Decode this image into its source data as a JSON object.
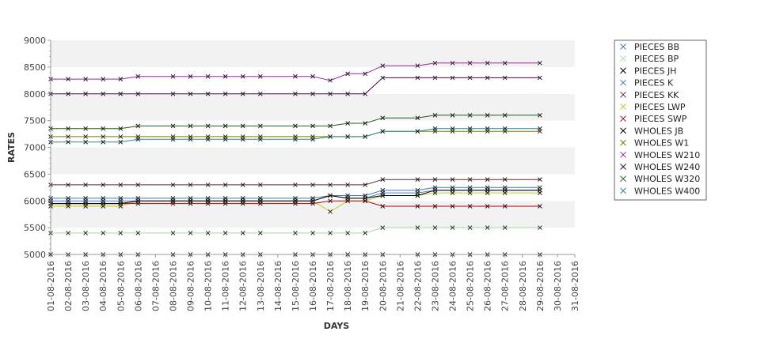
{
  "chart_data": {
    "type": "line",
    "title": "",
    "xlabel": "DAYS",
    "ylabel": "RATES",
    "ylim": [
      5000,
      9000
    ],
    "yticks": [
      5000,
      5500,
      6000,
      6500,
      7000,
      7500,
      8000,
      8500,
      9000
    ],
    "grid": "alternating horizontal bands",
    "legend_position": "right",
    "categories": [
      "01-08-2016",
      "02-08-2016",
      "03-08-2016",
      "04-08-2016",
      "05-08-2016",
      "06-08-2016",
      "07-08-2016",
      "08-08-2016",
      "09-08-2016",
      "10-08-2016",
      "11-08-2016",
      "12-08-2016",
      "13-08-2016",
      "14-08-2016",
      "15-08-2016",
      "16-08-2016",
      "17-08-2016",
      "18-08-2016",
      "19-08-2016",
      "20-08-2016",
      "21-08-2016",
      "22-08-2016",
      "23-08-2016",
      "24-08-2016",
      "25-08-2016",
      "26-08-2016",
      "27-08-2016",
      "28-08-2016",
      "29-08-2016",
      "30-08-2016",
      "31-08-2016"
    ],
    "series": [
      {
        "name": "PIECES BB",
        "color": "#3c78b4",
        "marker": "x",
        "values": [
          6050,
          6050,
          6050,
          6050,
          6050,
          6050,
          null,
          6050,
          6050,
          6050,
          6050,
          6050,
          6050,
          null,
          6050,
          6050,
          6100,
          6100,
          6100,
          6200,
          null,
          6200,
          6250,
          6250,
          6250,
          6250,
          6250,
          null,
          6250,
          null,
          null
        ]
      },
      {
        "name": "PIECES BP",
        "color": "#9ae09a",
        "marker": "x",
        "values": [
          5400,
          5400,
          5400,
          5400,
          5400,
          5400,
          null,
          5400,
          5400,
          5400,
          5400,
          5400,
          5400,
          null,
          5400,
          5400,
          5400,
          5400,
          5400,
          5500,
          null,
          5500,
          5500,
          5500,
          5500,
          5500,
          5500,
          null,
          5500,
          null,
          null
        ]
      },
      {
        "name": "PIECES JH",
        "color": "#000000",
        "marker": "x",
        "values": [
          5000,
          5000,
          5000,
          5000,
          5000,
          5000,
          null,
          5000,
          5000,
          5000,
          5000,
          5000,
          5000,
          null,
          5000,
          5000,
          5000,
          5000,
          5000,
          5000,
          null,
          5000,
          5000,
          5000,
          5000,
          5000,
          5000,
          null,
          5000,
          null,
          null
        ]
      },
      {
        "name": "PIECES K",
        "color": "#4a7ec8",
        "marker": "x",
        "values": [
          6000,
          6000,
          6000,
          6000,
          6000,
          6000,
          null,
          6000,
          6000,
          6000,
          6000,
          6000,
          6000,
          null,
          6000,
          6000,
          6100,
          6050,
          6050,
          6150,
          null,
          6150,
          6200,
          6200,
          6200,
          6200,
          6200,
          null,
          6200,
          null,
          null
        ]
      },
      {
        "name": "PIECES KK",
        "color": "#5a2a2a",
        "marker": "x",
        "values": [
          6300,
          6300,
          6300,
          6300,
          6300,
          6300,
          null,
          6300,
          6300,
          6300,
          6300,
          6300,
          6300,
          null,
          6300,
          6300,
          6300,
          6300,
          6300,
          6400,
          null,
          6400,
          6400,
          6400,
          6400,
          6400,
          6400,
          null,
          6400,
          null,
          null
        ]
      },
      {
        "name": "PIECES LWP",
        "color": "#c8c820",
        "marker": "x",
        "values": [
          5900,
          5900,
          5900,
          5900,
          5900,
          6000,
          null,
          6000,
          6000,
          6000,
          6000,
          6000,
          6000,
          null,
          6000,
          6000,
          5800,
          6000,
          6000,
          6100,
          null,
          6100,
          6150,
          6150,
          6150,
          6150,
          6150,
          null,
          6150,
          null,
          null
        ]
      },
      {
        "name": "PIECES SWP",
        "color": "#b40000",
        "marker": "x",
        "values": [
          5950,
          5950,
          5950,
          5950,
          5950,
          5950,
          null,
          5950,
          5950,
          5950,
          5950,
          5950,
          5950,
          null,
          5950,
          5950,
          6000,
          6000,
          6000,
          5900,
          null,
          5900,
          5900,
          5900,
          5900,
          5900,
          5900,
          null,
          5900,
          null,
          null
        ]
      },
      {
        "name": "WHOLES JB",
        "color": "#000000",
        "marker": "x",
        "values": [
          5950,
          5950,
          5950,
          5950,
          5950,
          6000,
          null,
          6000,
          6000,
          6000,
          6000,
          6000,
          6000,
          null,
          6000,
          6000,
          6100,
          6050,
          6050,
          6100,
          null,
          6100,
          6200,
          6200,
          6200,
          6200,
          6200,
          null,
          6200,
          null,
          null
        ]
      },
      {
        "name": "WHOLES W1",
        "color": "#7a7a00",
        "marker": "x",
        "values": [
          7200,
          7200,
          7200,
          7200,
          7200,
          7200,
          null,
          7200,
          7200,
          7200,
          7200,
          7200,
          7200,
          null,
          7200,
          7200,
          7200,
          7200,
          7200,
          7300,
          null,
          7300,
          7300,
          7300,
          7300,
          7300,
          7300,
          null,
          7300,
          null,
          null
        ]
      },
      {
        "name": "WHOLES W210",
        "color": "#a020a0",
        "marker": "x",
        "values": [
          8275,
          8275,
          8275,
          8275,
          8275,
          8325,
          null,
          8325,
          8325,
          8325,
          8325,
          8325,
          8325,
          null,
          8325,
          8325,
          8250,
          8375,
          8375,
          8525,
          null,
          8525,
          8575,
          8575,
          8575,
          8575,
          8575,
          null,
          8575,
          null,
          null
        ]
      },
      {
        "name": "WHOLES W240",
        "color": "#500050",
        "marker": "x",
        "values": [
          8000,
          8000,
          8000,
          8000,
          8000,
          8000,
          null,
          8000,
          8000,
          8000,
          8000,
          8000,
          8000,
          null,
          8000,
          8000,
          8000,
          8000,
          8000,
          8300,
          null,
          8300,
          8300,
          8300,
          8300,
          8300,
          8300,
          null,
          8300,
          null,
          null
        ]
      },
      {
        "name": "WHOLES W320",
        "color": "#1e5a1e",
        "marker": "x",
        "values": [
          7350,
          7350,
          7350,
          7350,
          7350,
          7400,
          null,
          7400,
          7400,
          7400,
          7400,
          7400,
          7400,
          null,
          7400,
          7400,
          7400,
          7450,
          7450,
          7550,
          null,
          7550,
          7600,
          7600,
          7600,
          7600,
          7600,
          null,
          7600,
          null,
          null
        ]
      },
      {
        "name": "WHOLES W400",
        "color": "#2a8a8a",
        "marker": "x",
        "values": [
          7100,
          7100,
          7100,
          7100,
          7100,
          7150,
          null,
          7150,
          7150,
          7150,
          7150,
          7150,
          7150,
          null,
          7150,
          7150,
          7200,
          7200,
          7200,
          7300,
          null,
          7300,
          7350,
          7350,
          7350,
          7350,
          7350,
          null,
          7350,
          null,
          null
        ]
      }
    ]
  }
}
